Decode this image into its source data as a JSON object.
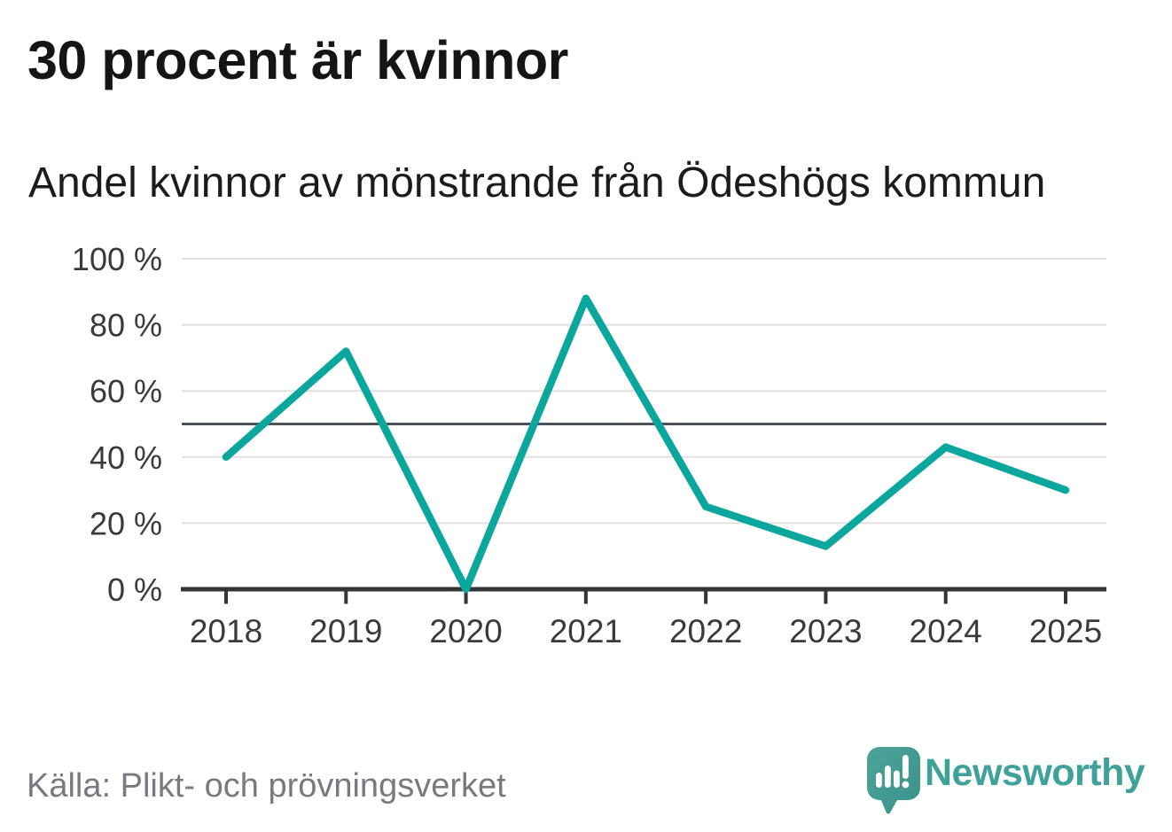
{
  "header": {
    "title": "30 procent är kvinnor",
    "subtitle": "Andel kvinnor av mönstrande från Ödeshögs kommun"
  },
  "chart_data": {
    "type": "line",
    "title": "30 procent är kvinnor",
    "subtitle": "Andel kvinnor av mönstrande från Ödeshögs kommun",
    "categories": [
      "2018",
      "2019",
      "2020",
      "2021",
      "2022",
      "2023",
      "2024",
      "2025"
    ],
    "series": [
      {
        "name": "andel-kvinnor",
        "color": "#0ba69c",
        "values": [
          40,
          72,
          0,
          88,
          25,
          13,
          43,
          30
        ]
      }
    ],
    "unit": "%",
    "ylim": [
      0,
      100
    ],
    "yticks": [
      0,
      20,
      40,
      60,
      80,
      100
    ],
    "ytick_suffix": " %",
    "reference_line_y": 50,
    "grid": true,
    "legend": "none",
    "markers": false
  },
  "colors": {
    "line": "#0ba69c",
    "grid": "#e1e1e1",
    "reference_line": "#4f5358",
    "axis": "#353535",
    "tick_label": "#3a3a3a",
    "title_text": "#151515",
    "source_text": "#7a7980",
    "brand_teal": "#3fa29a",
    "logo_bubble": "#459a92",
    "background": "#ffffff"
  },
  "footer": {
    "source": "Källa: Plikt- och prövningsverket",
    "brand": "Newsworthy",
    "logo_icon": "speech-bubble-with-bar-chart-and-exclamation"
  }
}
